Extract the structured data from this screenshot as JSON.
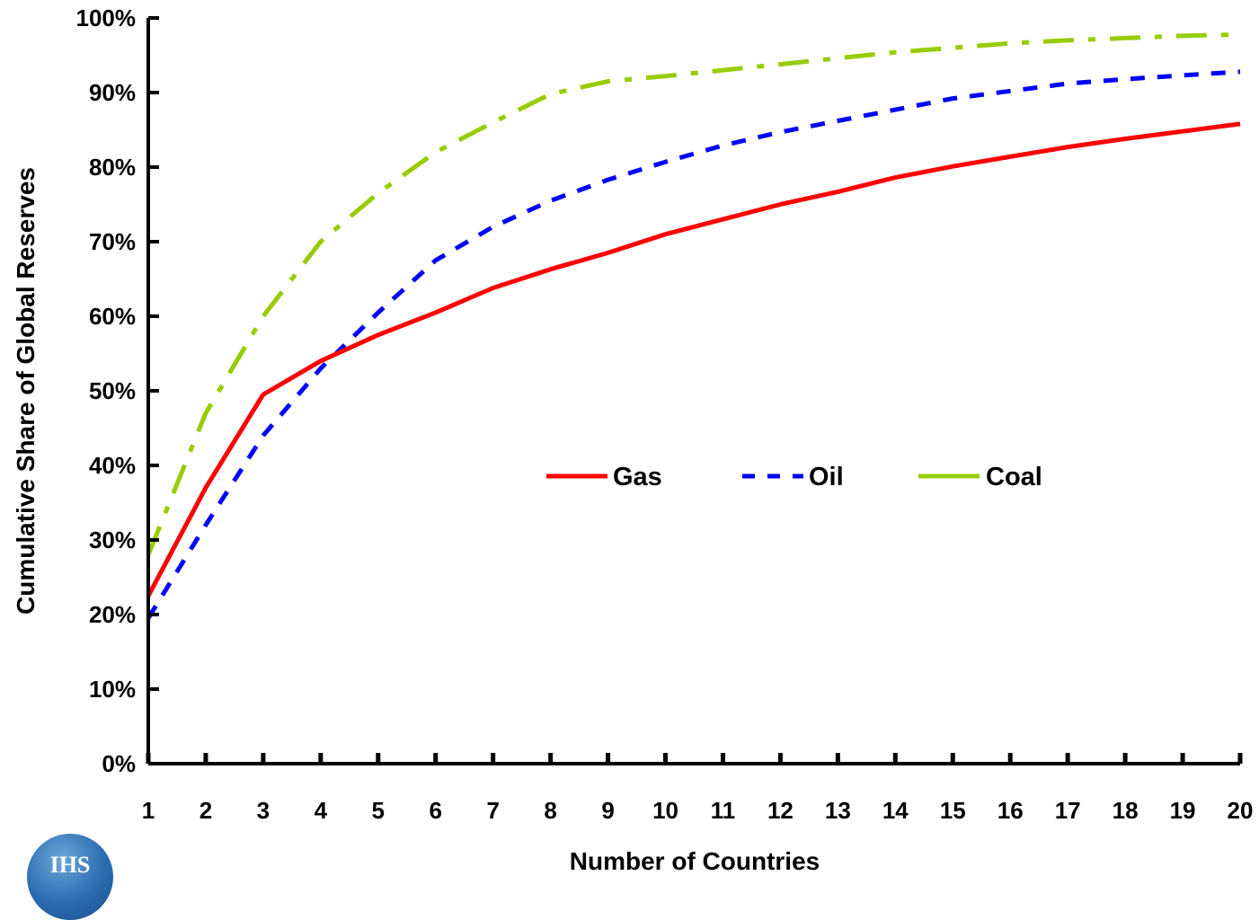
{
  "chart_data": {
    "type": "line",
    "title": "",
    "xlabel": "Number of Countries",
    "ylabel": "Cumulative Share of Global Reserves",
    "x": [
      1,
      2,
      3,
      4,
      5,
      6,
      7,
      8,
      9,
      10,
      11,
      12,
      13,
      14,
      15,
      16,
      17,
      18,
      19,
      20
    ],
    "xlim": [
      1,
      20
    ],
    "ylim": [
      0,
      100
    ],
    "ytick_labels": [
      "0%",
      "10%",
      "20%",
      "30%",
      "40%",
      "50%",
      "60%",
      "70%",
      "80%",
      "90%",
      "100%"
    ],
    "xtick_labels": [
      "1",
      "2",
      "3",
      "4",
      "5",
      "6",
      "7",
      "8",
      "9",
      "10",
      "11",
      "12",
      "13",
      "14",
      "15",
      "16",
      "17",
      "18",
      "19",
      "20"
    ],
    "grid": false,
    "legend_position": "center",
    "series": [
      {
        "name": "Gas",
        "color": "#ff0000",
        "style": "solid",
        "values": [
          22.5,
          37,
          49.5,
          54,
          57.5,
          60.5,
          63.8,
          66.3,
          68.5,
          71,
          73,
          75,
          76.7,
          78.6,
          80.1,
          81.4,
          82.7,
          83.8,
          84.8,
          85.8
        ]
      },
      {
        "name": "Oil",
        "color": "#0000ff",
        "style": "dotted",
        "values": [
          19.5,
          32,
          44,
          53,
          60.5,
          67.5,
          72,
          75.5,
          78.3,
          80.7,
          82.9,
          84.7,
          86.2,
          87.7,
          89.2,
          90.2,
          91.2,
          91.8,
          92.3,
          92.8
        ]
      },
      {
        "name": "Coal",
        "color": "#99cc00",
        "style": "dashdot",
        "values": [
          28,
          47,
          60,
          70,
          76.5,
          82,
          86,
          89.8,
          91.5,
          92.2,
          93,
          93.8,
          94.6,
          95.4,
          96,
          96.6,
          97,
          97.3,
          97.6,
          97.8
        ]
      }
    ]
  }
}
